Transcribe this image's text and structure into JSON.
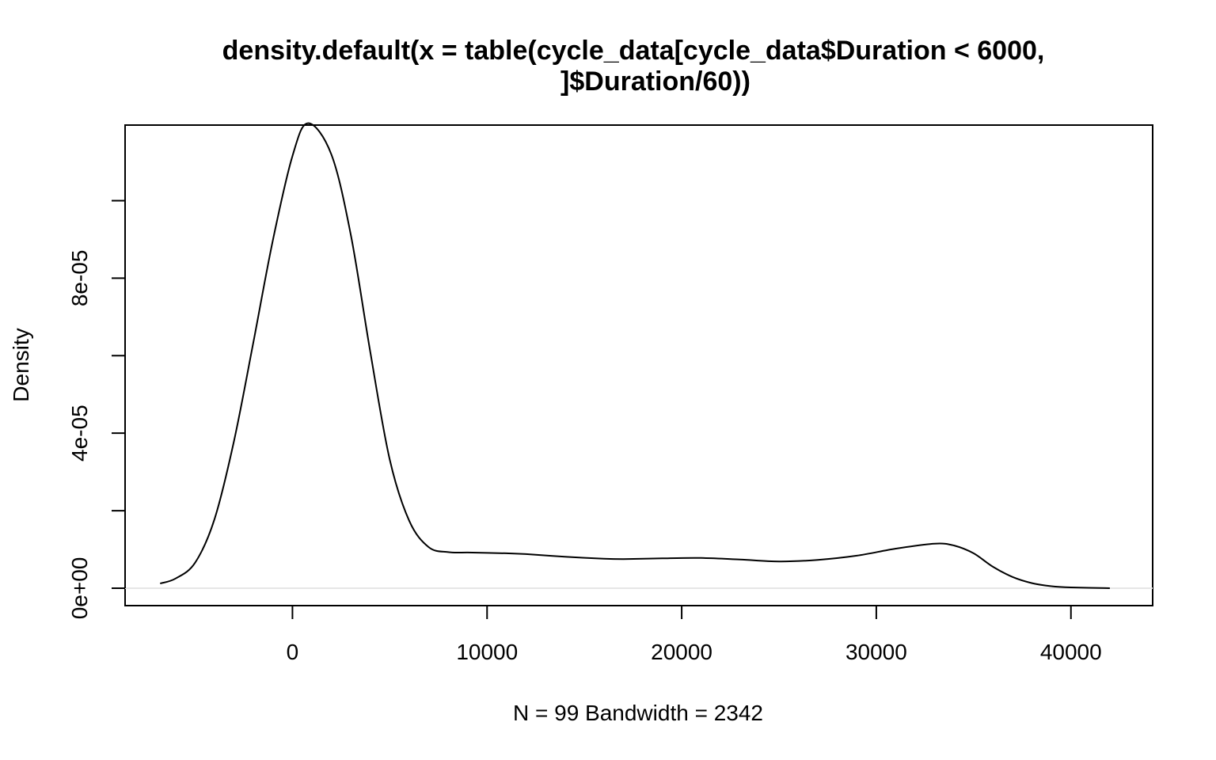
{
  "chart_data": {
    "type": "line",
    "title_lines": [
      "density.default(x = table(cycle_data[cycle_data$Duration < 6000,",
      "]$Duration/60))"
    ],
    "xlabel": "N = 99   Bandwidth = 2342",
    "ylabel": "Density",
    "xlim": [
      -8600,
      44200
    ],
    "ylim": [
      -4.5e-06,
      0.0001195
    ],
    "x_ticks": [
      0,
      10000,
      20000,
      30000,
      40000
    ],
    "x_tick_labels": [
      "0",
      "10000",
      "20000",
      "30000",
      "40000"
    ],
    "y_ticks": [
      0,
      2e-05,
      4e-05,
      6e-05,
      8e-05,
      0.0001
    ],
    "y_tick_labels": [
      "0e+00",
      "",
      "4e-05",
      "",
      "8e-05",
      ""
    ],
    "grid": false,
    "baseline": 0,
    "baseline_color": "#e6e6e6",
    "line_color": "#000000",
    "series": [
      {
        "x": [
          -6800,
          -6000,
          -5000,
          -4000,
          -3000,
          -2000,
          -1000,
          0,
          800,
          2000,
          3000,
          4000,
          5000,
          6000,
          7000,
          8000,
          9000,
          10000,
          11000,
          12000,
          14000,
          16000,
          17000,
          19000,
          21000,
          23000,
          25000,
          27000,
          29000,
          31000,
          33000,
          34000,
          35000,
          36000,
          37000,
          38000,
          39000,
          40000,
          42000
        ],
        "y": [
          1.2e-06,
          2.5e-06,
          6.6e-06,
          1.79e-05,
          3.81e-05,
          6.37e-05,
          8.99e-05,
          0.0001115,
          0.00012,
          0.0001119,
          9.11e-05,
          6.09e-05,
          3.32e-05,
          1.74e-05,
          1.06e-05,
          9.3e-06,
          9.2e-06,
          9.1e-06,
          9e-06,
          8.8e-06,
          8.1e-06,
          7.6e-06,
          7.5e-06,
          7.7e-06,
          7.8e-06,
          7.4e-06,
          6.9e-06,
          7.3e-06,
          8.4e-06,
          1.02e-05,
          1.15e-05,
          1.1e-05,
          9e-06,
          5.5e-06,
          2.9e-06,
          1.3e-06,
          5e-07,
          2e-07,
          0.0
        ]
      }
    ]
  }
}
